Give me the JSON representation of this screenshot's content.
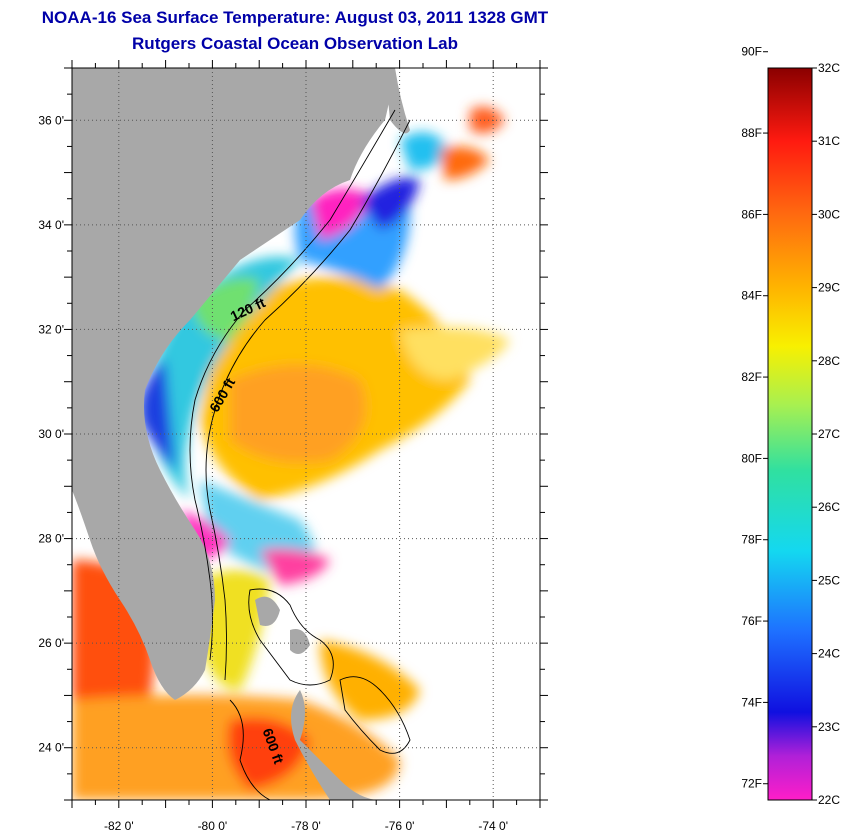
{
  "title_line1": "NOAA-16 Sea Surface Temperature:  August 03, 2011 1328 GMT",
  "title_line2": "Rutgers Coastal Ocean Observation Lab",
  "map": {
    "lon_range": [
      -83,
      -73
    ],
    "lat_range": [
      23,
      37
    ],
    "lon_ticks": [
      {
        "value": -82,
        "label": "-82 0'"
      },
      {
        "value": -80,
        "label": "-80 0'"
      },
      {
        "value": -78,
        "label": "-78 0'"
      },
      {
        "value": -76,
        "label": "-76 0'"
      },
      {
        "value": -74,
        "label": "-74 0'"
      }
    ],
    "lat_ticks": [
      {
        "value": 36,
        "label": "36 0'"
      },
      {
        "value": 34,
        "label": "34 0'"
      },
      {
        "value": 32,
        "label": "32 0'"
      },
      {
        "value": 30,
        "label": "30 0'"
      },
      {
        "value": 28,
        "label": "28 0'"
      },
      {
        "value": 26,
        "label": "26 0'"
      },
      {
        "value": 24,
        "label": "24 0'"
      }
    ],
    "contour_labels": [
      {
        "text": "120 ft",
        "lon": -79.2,
        "lat": 32.3
      },
      {
        "text": "600 ft",
        "lon": -79.7,
        "lat": 30.7
      },
      {
        "text": "600 ft",
        "lon": -78.8,
        "lat": 24.0
      }
    ],
    "colors": {
      "land": "#a8a8a8",
      "no_data": "#ffffff"
    }
  },
  "colorbar": {
    "fahrenheit_labels": [
      "90F",
      "88F",
      "86F",
      "84F",
      "82F",
      "80F",
      "78F",
      "76F",
      "74F",
      "72F"
    ],
    "celsius_labels": [
      "32C",
      "31C",
      "30C",
      "29C",
      "28C",
      "27C",
      "26C",
      "25C",
      "24C",
      "23C",
      "22C"
    ],
    "range_c": [
      22,
      32
    ],
    "stops": [
      {
        "c": 22.0,
        "color": "#ff1ec8"
      },
      {
        "c": 22.6,
        "color": "#b020d8"
      },
      {
        "c": 23.2,
        "color": "#1010e0"
      },
      {
        "c": 24.3,
        "color": "#1e70ff"
      },
      {
        "c": 25.4,
        "color": "#14d8f0"
      },
      {
        "c": 26.5,
        "color": "#30e0a0"
      },
      {
        "c": 27.4,
        "color": "#a8f050"
      },
      {
        "c": 28.2,
        "color": "#f8f000"
      },
      {
        "c": 29.0,
        "color": "#ffb400"
      },
      {
        "c": 30.0,
        "color": "#ff6a10"
      },
      {
        "c": 31.0,
        "color": "#ff1a10"
      },
      {
        "c": 32.0,
        "color": "#8a0000"
      }
    ]
  }
}
